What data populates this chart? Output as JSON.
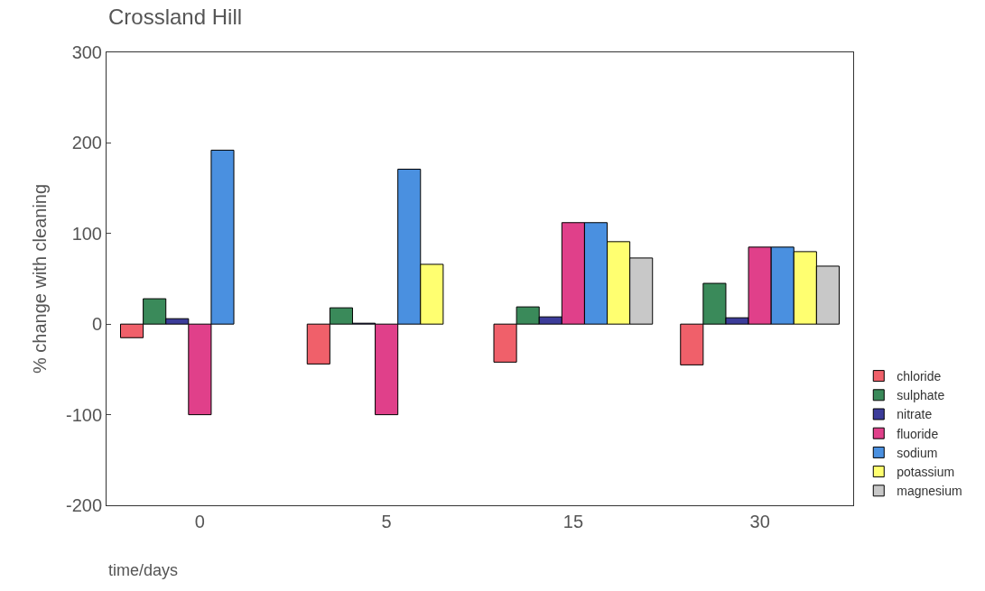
{
  "chart_data": {
    "type": "bar",
    "title": "Crossland Hill",
    "xlabel": "time/days",
    "ylabel": "% change with cleaning",
    "categories": [
      "0",
      "5",
      "15",
      "30"
    ],
    "series": [
      {
        "name": "chloride",
        "color": "#f0606a",
        "values": [
          -15,
          -44,
          -42,
          -45
        ]
      },
      {
        "name": "sulphate",
        "color": "#3a8a5a",
        "values": [
          28,
          18,
          19,
          45
        ]
      },
      {
        "name": "nitrate",
        "color": "#3c3c9a",
        "values": [
          6,
          1,
          8,
          7
        ]
      },
      {
        "name": "fluoride",
        "color": "#e0408a",
        "values": [
          -100,
          -100,
          112,
          85
        ]
      },
      {
        "name": "sodium",
        "color": "#4a90e0",
        "values": [
          192,
          171,
          112,
          85
        ]
      },
      {
        "name": "potassium",
        "color": "#ffff70",
        "values": [
          null,
          66,
          91,
          80
        ]
      },
      {
        "name": "magnesium",
        "color": "#c8c8c8",
        "values": [
          null,
          null,
          73,
          64
        ]
      }
    ],
    "ylim": [
      -200,
      300
    ],
    "yticks": [
      -200,
      -100,
      0,
      100,
      200,
      300
    ],
    "legend": "right"
  }
}
